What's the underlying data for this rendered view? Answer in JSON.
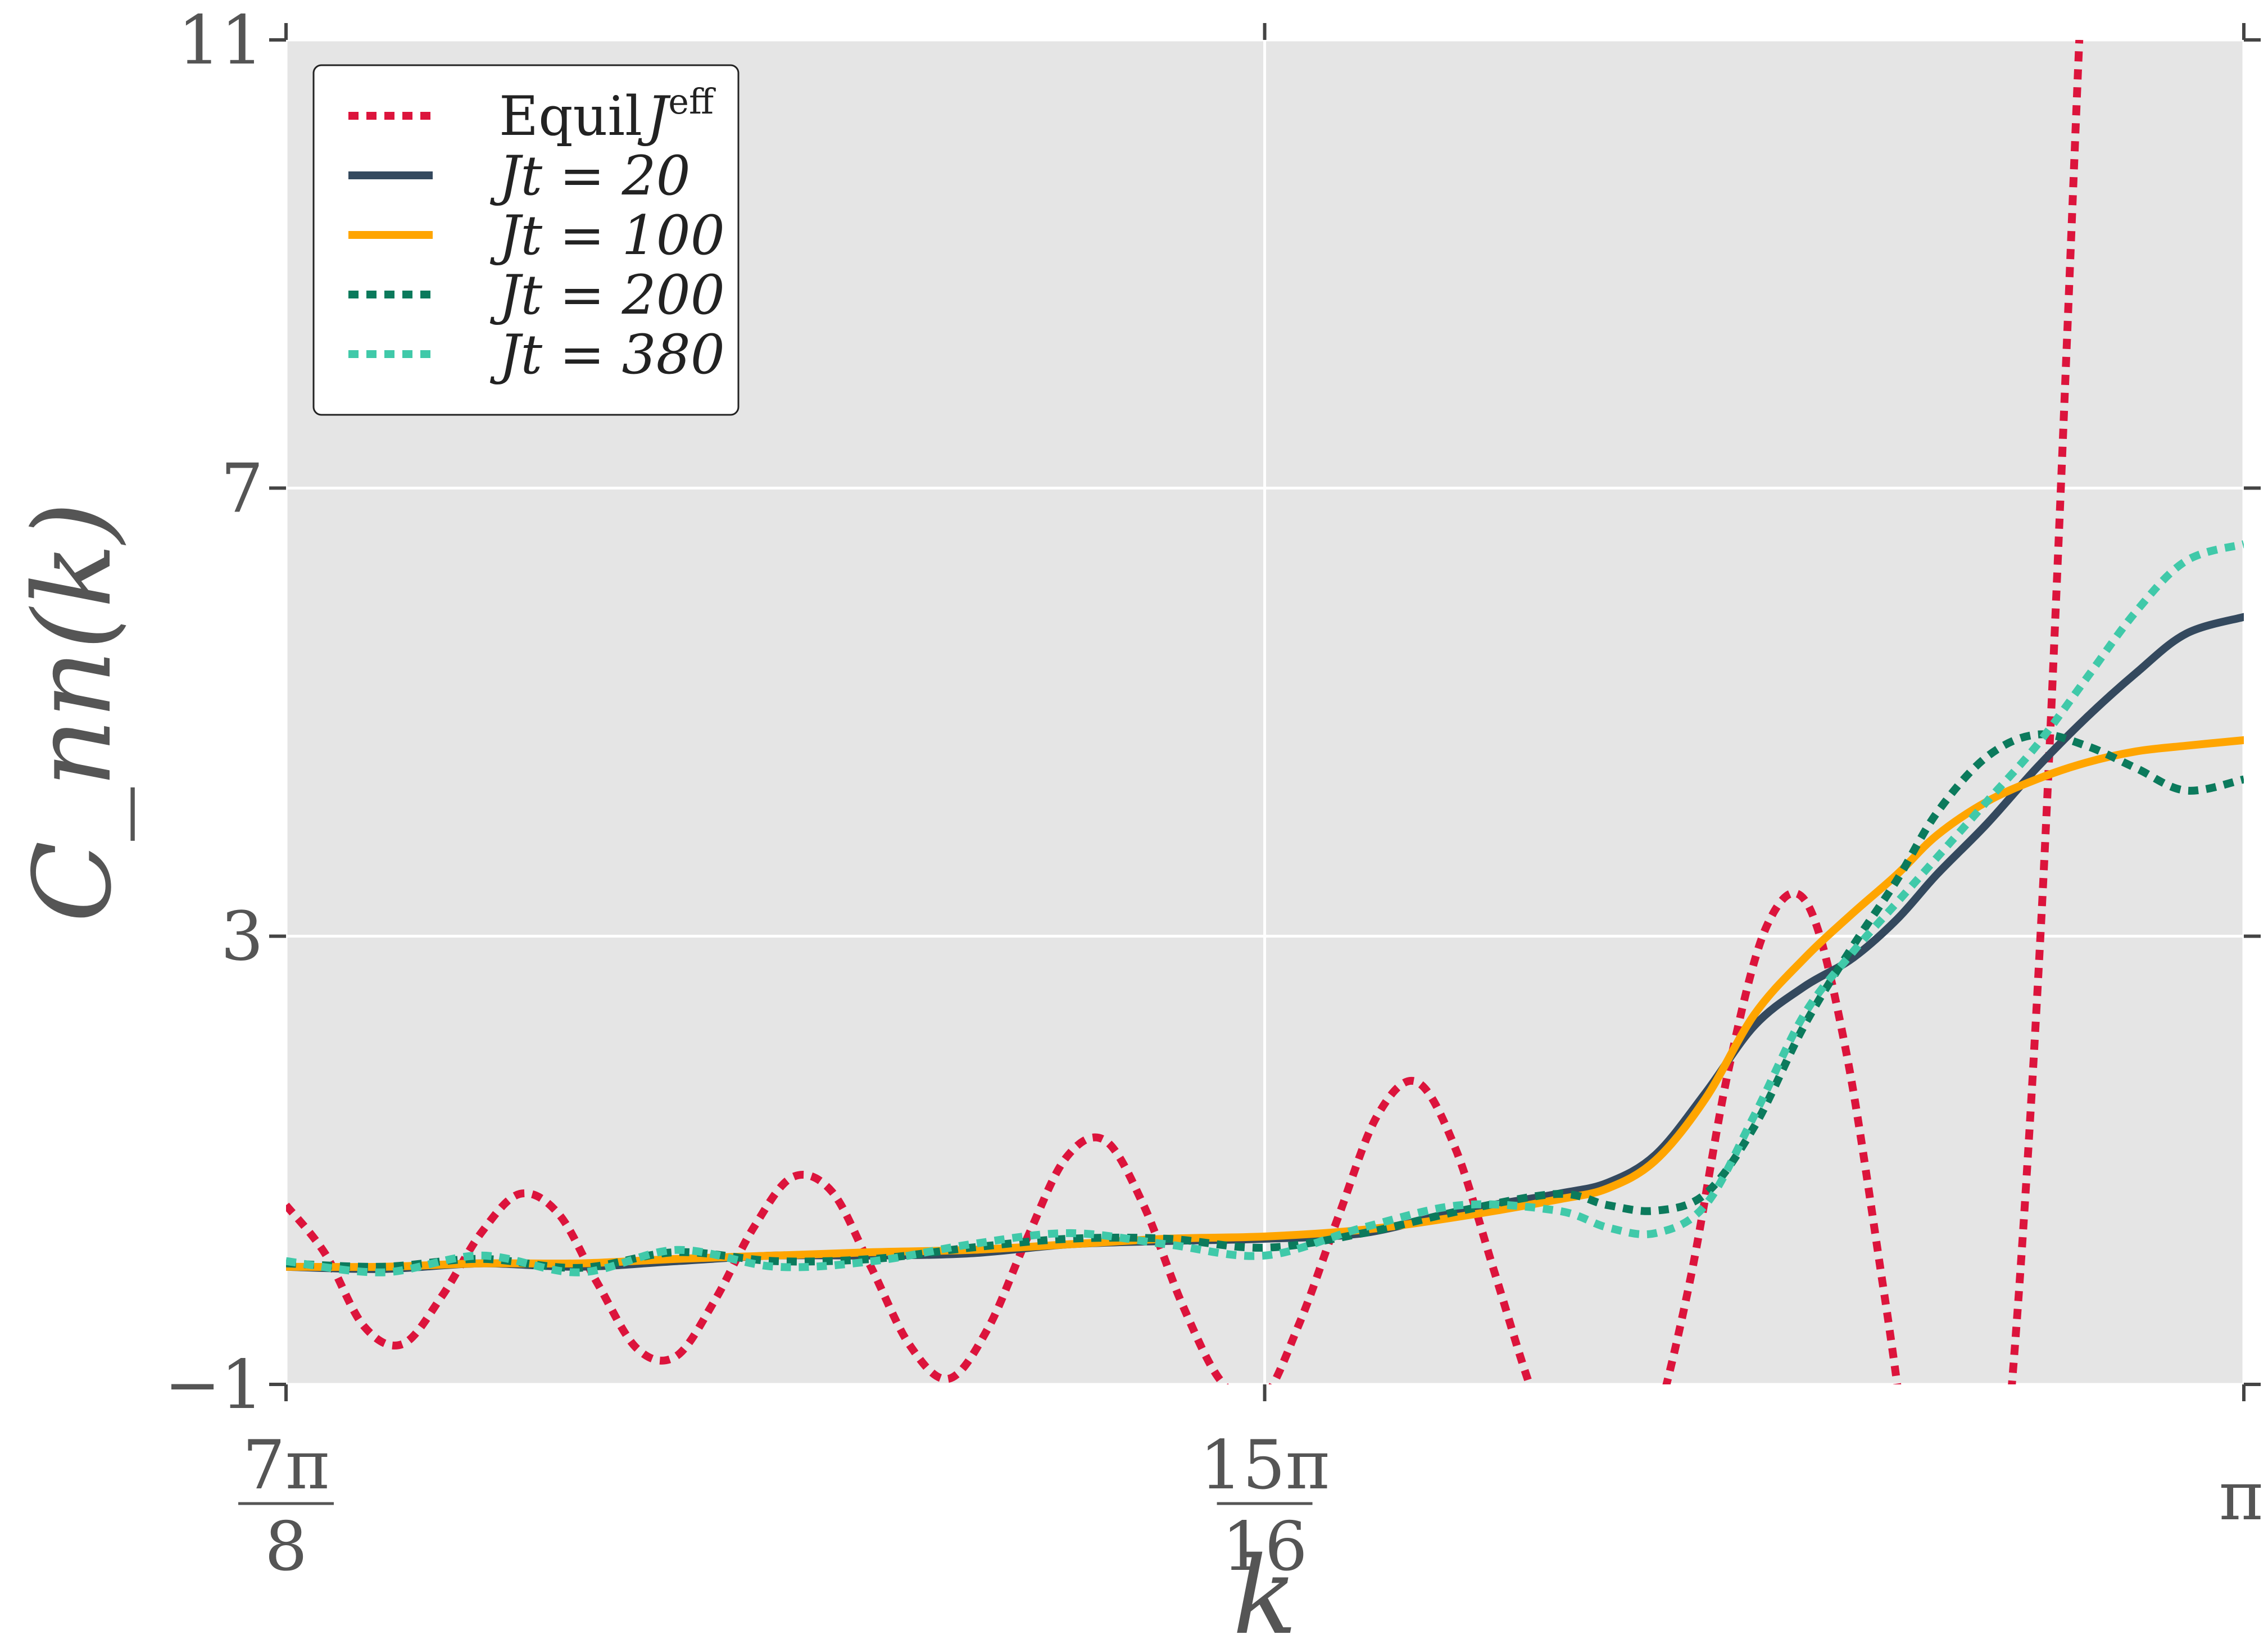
{
  "chart_data": {
    "type": "line",
    "title": "",
    "xlabel": "k",
    "ylabel": "C_nn(k)",
    "xlim": [
      2.7489,
      3.1416
    ],
    "ylim": [
      -1,
      11
    ],
    "grid": true,
    "legend_position": "top-left",
    "x_ticks": [
      {
        "value": 2.7489,
        "numerator": "7π",
        "denominator": "8"
      },
      {
        "value": 2.9452,
        "numerator": "15π",
        "denominator": "16"
      },
      {
        "value": 3.1416,
        "numerator": "π",
        "denominator": ""
      }
    ],
    "y_ticks": [
      {
        "value": -1,
        "label": "−1"
      },
      {
        "value": 3,
        "label": "3"
      },
      {
        "value": 7,
        "label": "7"
      },
      {
        "value": 11,
        "label": "11"
      }
    ],
    "series": [
      {
        "name": "Equil J^eff",
        "legend_label": "Equil",
        "legend_symbol": "J",
        "legend_sup": "eff",
        "color": "#dc143c",
        "style": "dotted",
        "x": [
          2.7489,
          2.7567,
          2.7645,
          2.7723,
          2.7802,
          2.788,
          2.7958,
          2.8036,
          2.8114,
          2.8193,
          2.8271,
          2.8349,
          2.8427,
          2.8505,
          2.8584,
          2.8662,
          2.874,
          2.8818,
          2.8897,
          2.8975,
          2.9053,
          2.9131,
          2.9209,
          2.9288,
          2.9366,
          2.9444,
          2.9522,
          2.96,
          2.9678,
          2.9757,
          2.9835,
          2.9913,
          2.9991,
          3.0069,
          3.0148,
          3.0226,
          3.0304,
          3.0382,
          3.046,
          3.0539,
          3.0617,
          3.0695,
          3.0773,
          3.0851,
          3.093,
          3.1008,
          3.1086
        ],
        "y": [
          0.6,
          0.17,
          -0.48,
          -0.64,
          -0.21,
          0.35,
          0.7,
          0.52,
          -0.1,
          -0.68,
          -0.75,
          -0.25,
          0.4,
          0.85,
          0.72,
          0.05,
          -0.65,
          -0.95,
          -0.5,
          0.3,
          1.02,
          1.18,
          0.6,
          -0.3,
          -0.98,
          -1.15,
          -0.45,
          0.5,
          1.4,
          1.7,
          1.1,
          0.0,
          -1.1,
          -1.9,
          -2.2,
          -1.5,
          -0.1,
          1.8,
          3.1,
          3.3,
          2.0,
          -0.2,
          -2.5,
          -3.5,
          -2.0,
          3.0,
          11.0
        ]
      },
      {
        "name": "Jt = 20",
        "legend_label": "Jt = 20",
        "color": "#34495e",
        "style": "solid",
        "x": [
          2.7489,
          2.7684,
          2.788,
          2.8078,
          2.8272,
          2.8471,
          2.8667,
          2.8862,
          2.906,
          2.9256,
          2.9452,
          2.965,
          2.9846,
          3.004,
          3.014,
          3.0236,
          3.0336,
          3.0434,
          3.0534,
          3.063,
          3.072,
          3.08,
          3.09,
          3.1,
          3.11,
          3.12,
          3.13,
          3.1416
        ],
        "y": [
          0.05,
          0.03,
          0.08,
          0.05,
          0.1,
          0.15,
          0.15,
          0.17,
          0.25,
          0.28,
          0.3,
          0.35,
          0.55,
          0.7,
          0.8,
          1.05,
          1.6,
          2.2,
          2.55,
          2.8,
          3.15,
          3.55,
          4.0,
          4.5,
          4.95,
          5.35,
          5.7,
          5.85
        ]
      },
      {
        "name": "Jt = 100",
        "legend_label": "Jt = 100",
        "color": "#ffa500",
        "style": "solid",
        "x": [
          2.7489,
          2.7684,
          2.788,
          2.8078,
          2.8272,
          2.8471,
          2.8667,
          2.8862,
          2.906,
          2.9256,
          2.9452,
          2.965,
          2.9846,
          3.004,
          3.014,
          3.0236,
          3.0336,
          3.0434,
          3.0534,
          3.063,
          3.072,
          3.08,
          3.09,
          3.1,
          3.11,
          3.12,
          3.13,
          3.1416
        ],
        "y": [
          0.05,
          0.05,
          0.08,
          0.08,
          0.12,
          0.15,
          0.18,
          0.2,
          0.25,
          0.3,
          0.32,
          0.38,
          0.5,
          0.65,
          0.75,
          1.0,
          1.55,
          2.3,
          2.8,
          3.2,
          3.55,
          3.9,
          4.2,
          4.4,
          4.55,
          4.65,
          4.7,
          4.75
        ]
      },
      {
        "name": "Jt = 200",
        "legend_label": "Jt = 200",
        "color": "#0b7a5c",
        "style": "dotted",
        "x": [
          2.7489,
          2.7684,
          2.788,
          2.8078,
          2.8272,
          2.8471,
          2.8667,
          2.8862,
          2.906,
          2.9256,
          2.9452,
          2.965,
          2.9846,
          3.004,
          3.014,
          3.0236,
          3.0336,
          3.0434,
          3.0534,
          3.063,
          3.072,
          3.08,
          3.09,
          3.1,
          3.11,
          3.12,
          3.13,
          3.1416
        ],
        "y": [
          0.08,
          0.05,
          0.12,
          0.04,
          0.18,
          0.1,
          0.12,
          0.22,
          0.3,
          0.3,
          0.22,
          0.35,
          0.55,
          0.7,
          0.6,
          0.55,
          0.7,
          1.3,
          2.2,
          2.9,
          3.5,
          4.1,
          4.6,
          4.8,
          4.7,
          4.5,
          4.3,
          4.4
        ]
      },
      {
        "name": "Jt = 380",
        "legend_label": "Jt = 380",
        "color": "#40c9a9",
        "style": "dotted",
        "x": [
          2.7489,
          2.7684,
          2.788,
          2.8078,
          2.8272,
          2.8471,
          2.8667,
          2.8862,
          2.906,
          2.9256,
          2.9452,
          2.965,
          2.9846,
          3.004,
          3.014,
          3.0236,
          3.0336,
          3.0434,
          3.0534,
          3.063,
          3.072,
          3.08,
          3.09,
          3.1,
          3.11,
          3.12,
          3.13,
          3.1416
        ],
        "y": [
          0.1,
          0.0,
          0.15,
          0.0,
          0.2,
          0.05,
          0.1,
          0.25,
          0.35,
          0.25,
          0.15,
          0.4,
          0.6,
          0.55,
          0.4,
          0.35,
          0.6,
          1.4,
          2.3,
          2.85,
          3.3,
          3.7,
          4.2,
          4.7,
          5.3,
          5.9,
          6.35,
          6.5
        ]
      }
    ]
  }
}
